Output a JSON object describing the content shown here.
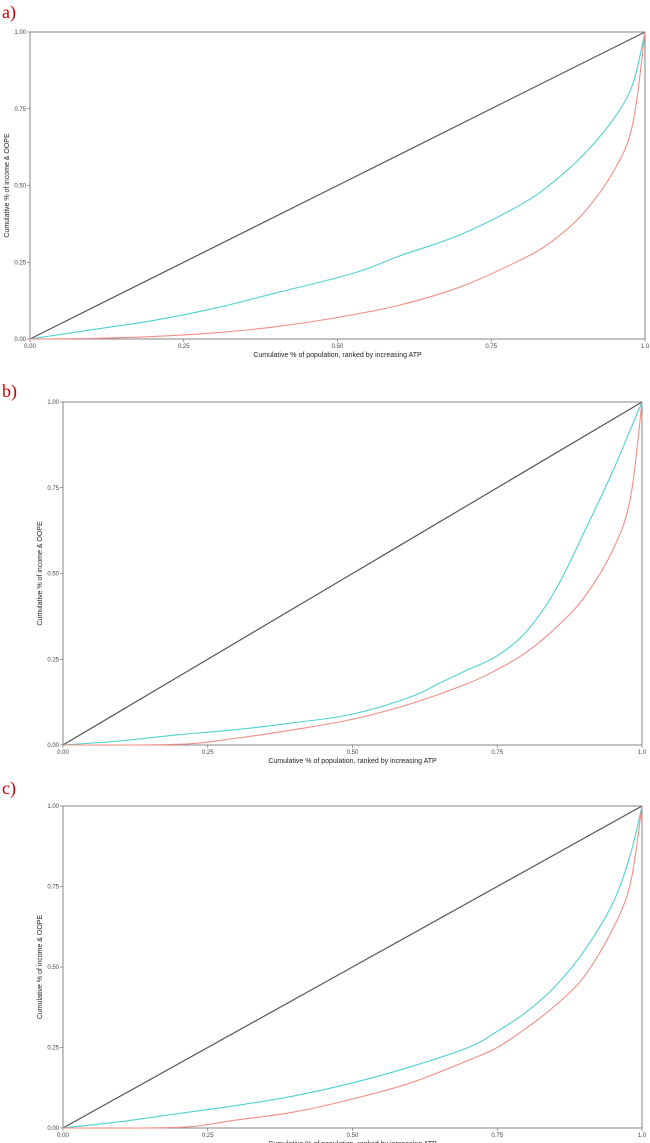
{
  "figure": {
    "panels": [
      {
        "label": "a)"
      },
      {
        "label": "b)"
      },
      {
        "label": "c)"
      }
    ]
  },
  "colors": {
    "equality_line": "#555555",
    "income_curve": "#4fd1d1",
    "oope_curve": "#f08f86",
    "frame": "#666666"
  },
  "chart_data": [
    {
      "type": "line",
      "title": "",
      "xlabel": "Cumulative % of population, ranked by increasing ATP",
      "ylabel": "Cumulative % of income & OOPE",
      "xlim": [
        0,
        1
      ],
      "ylim": [
        0,
        1
      ],
      "x_ticks": [
        "0.00",
        "0.25",
        "0.50",
        "0.75",
        "1.0"
      ],
      "y_ticks": [
        "0.00",
        "0.25",
        "0.50",
        "0.75",
        "1.00"
      ],
      "grid": false,
      "legend": "none",
      "series": [
        {
          "color": "#555555",
          "x": [
            0,
            1
          ],
          "y": [
            0,
            1
          ]
        },
        {
          "color": "#4fd1d1",
          "x": [
            0,
            0.1,
            0.2,
            0.3,
            0.4,
            0.5,
            0.55,
            0.6,
            0.7,
            0.8,
            0.85,
            0.9,
            0.95,
            0.98,
            1.0
          ],
          "y": [
            0,
            0.03,
            0.06,
            0.1,
            0.15,
            0.2,
            0.23,
            0.27,
            0.34,
            0.44,
            0.51,
            0.6,
            0.72,
            0.83,
            1.0
          ]
        },
        {
          "color": "#f08f86",
          "x": [
            0,
            0.1,
            0.2,
            0.3,
            0.4,
            0.5,
            0.6,
            0.7,
            0.8,
            0.85,
            0.9,
            0.95,
            0.98,
            1.0
          ],
          "y": [
            0,
            0.002,
            0.008,
            0.02,
            0.04,
            0.07,
            0.11,
            0.17,
            0.26,
            0.32,
            0.41,
            0.55,
            0.7,
            1.0
          ]
        }
      ]
    },
    {
      "type": "line",
      "title": "",
      "xlabel": "Cumulative % of population, ranked by increasing ATP",
      "ylabel": "Cumulative % of income & OOPE",
      "xlim": [
        0,
        1
      ],
      "ylim": [
        0,
        1
      ],
      "x_ticks": [
        "0.00",
        "0.25",
        "0.50",
        "0.75",
        "1.0"
      ],
      "y_ticks": [
        "0.00",
        "0.25",
        "0.50",
        "0.75",
        "1.00"
      ],
      "grid": false,
      "legend": "none",
      "series": [
        {
          "color": "#555555",
          "x": [
            0,
            1
          ],
          "y": [
            0,
            1
          ]
        },
        {
          "color": "#4fd1d1",
          "x": [
            0,
            0.1,
            0.2,
            0.3,
            0.4,
            0.5,
            0.6,
            0.65,
            0.7,
            0.75,
            0.8,
            0.85,
            0.9,
            0.95,
            0.98,
            1.0
          ],
          "y": [
            0,
            0.012,
            0.03,
            0.045,
            0.065,
            0.09,
            0.14,
            0.18,
            0.22,
            0.26,
            0.33,
            0.45,
            0.62,
            0.8,
            0.92,
            1.0
          ]
        },
        {
          "color": "#f08f86",
          "x": [
            0,
            0.2,
            0.3,
            0.4,
            0.5,
            0.6,
            0.7,
            0.75,
            0.8,
            0.85,
            0.9,
            0.95,
            0.98,
            1.0
          ],
          "y": [
            0,
            0.002,
            0.02,
            0.045,
            0.075,
            0.12,
            0.18,
            0.22,
            0.27,
            0.34,
            0.43,
            0.57,
            0.72,
            1.0
          ]
        }
      ]
    },
    {
      "type": "line",
      "title": "",
      "xlabel": "Cumulative % of population, ranked by increasing ATP",
      "ylabel": "Cumulative % of income & OOPE",
      "xlim": [
        0,
        1
      ],
      "ylim": [
        0,
        1
      ],
      "x_ticks": [
        "0.00",
        "0.25",
        "0.50",
        "0.75",
        "1.0"
      ],
      "y_ticks": [
        "0.00",
        "0.25",
        "0.50",
        "0.75",
        "1.00"
      ],
      "grid": false,
      "legend": "none",
      "series": [
        {
          "color": "#555555",
          "x": [
            0,
            1
          ],
          "y": [
            0,
            1
          ]
        },
        {
          "color": "#4fd1d1",
          "x": [
            0,
            0.1,
            0.2,
            0.3,
            0.4,
            0.5,
            0.6,
            0.7,
            0.75,
            0.8,
            0.85,
            0.9,
            0.95,
            0.98,
            1.0
          ],
          "y": [
            0,
            0.02,
            0.045,
            0.07,
            0.1,
            0.14,
            0.19,
            0.25,
            0.3,
            0.36,
            0.44,
            0.55,
            0.7,
            0.85,
            1.0
          ]
        },
        {
          "color": "#f08f86",
          "x": [
            0,
            0.2,
            0.3,
            0.4,
            0.5,
            0.6,
            0.7,
            0.75,
            0.8,
            0.85,
            0.9,
            0.95,
            0.98,
            1.0
          ],
          "y": [
            0,
            0.002,
            0.025,
            0.05,
            0.09,
            0.14,
            0.21,
            0.25,
            0.31,
            0.38,
            0.47,
            0.62,
            0.76,
            1.0
          ]
        }
      ]
    }
  ]
}
